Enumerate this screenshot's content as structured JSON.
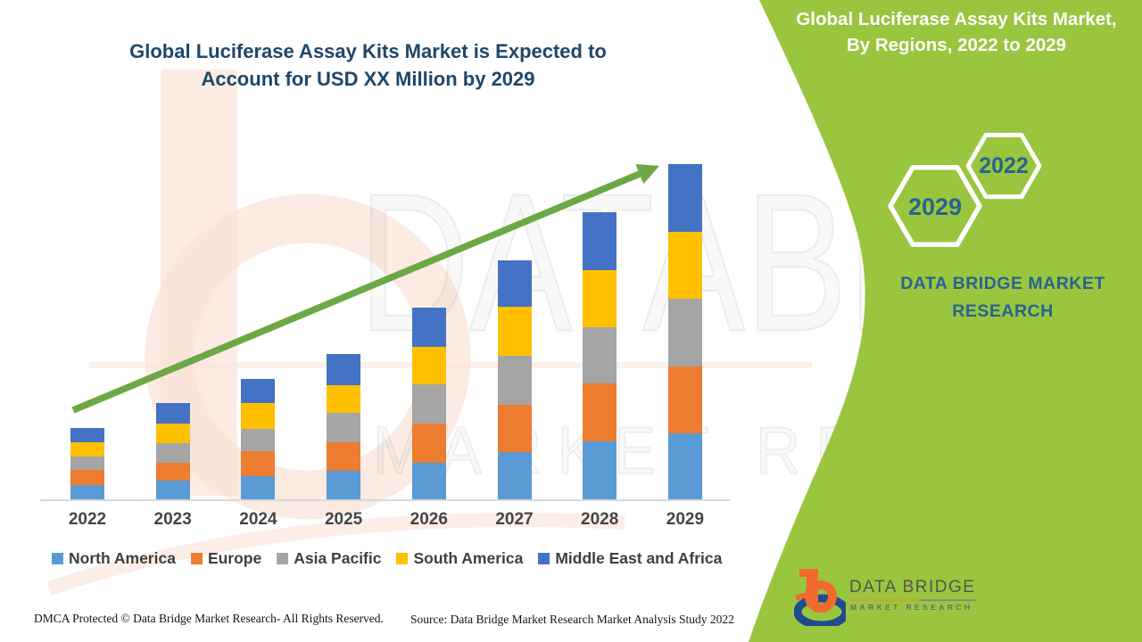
{
  "header": {
    "title_line1": "Global Luciferase Assay Kits Market is Expected to",
    "title_line2": "Account for USD XX Million by 2029"
  },
  "side_band": {
    "color": "#9AC53F",
    "title_line1": "Global Luciferase Assay Kits Market,",
    "title_line2": "By Regions, 2022 to 2029",
    "hexagons": [
      {
        "label": "2029"
      },
      {
        "label": "2022"
      }
    ],
    "brand_line1": "DATA BRIDGE MARKET",
    "brand_line2": "RESEARCH"
  },
  "watermark": {
    "line1": "DATABRIDGE",
    "line2": "MARKET RESEARCH"
  },
  "chart_data": {
    "type": "bar",
    "stacked": true,
    "title": "Global Luciferase Assay Kits Market is Expected to Account for USD XX Million by 2029",
    "xlabel": "",
    "ylabel": "",
    "y_axis_visible": false,
    "grid": false,
    "legend_position": "bottom",
    "trend_arrow": true,
    "categories": [
      "2022",
      "2023",
      "2024",
      "2025",
      "2026",
      "2027",
      "2028",
      "2029"
    ],
    "series": [
      {
        "name": "North America",
        "color": "#5B9BD5",
        "values": [
          16,
          21,
          26,
          32,
          41,
          53,
          65,
          74
        ]
      },
      {
        "name": "Europe",
        "color": "#ED7D31",
        "values": [
          17,
          20,
          28,
          32,
          44,
          53,
          65,
          75
        ]
      },
      {
        "name": "Asia Pacific",
        "color": "#A5A5A5",
        "values": [
          15,
          22,
          25,
          33,
          44,
          55,
          63,
          76
        ]
      },
      {
        "name": "South America",
        "color": "#FFC000",
        "values": [
          16,
          22,
          29,
          31,
          42,
          55,
          64,
          75
        ]
      },
      {
        "name": "Middle East and Africa",
        "color": "#4472C4",
        "values": [
          16,
          23,
          27,
          35,
          44,
          52,
          65,
          76
        ]
      }
    ],
    "values_note": "relative stacked heights; chart displays no numeric value axis (values shown as XX)"
  },
  "footer": {
    "dmca": "DMCA Protected © Data Bridge Market Research- All Rights Reserved.",
    "source": "Source: Data Bridge Market Research Market Analysis Study 2022"
  },
  "logo": {
    "title": "DATA BRIDGE",
    "subtitle": "MARKET RESEARCH"
  },
  "colors": {
    "chart_title_blue": "#1F4769",
    "band_green": "#9AC53F",
    "band_text_blue": "#27648F",
    "arrow_green": "#6CA845",
    "axis_gray": "#D9D9D9",
    "label_gray": "#454545"
  }
}
